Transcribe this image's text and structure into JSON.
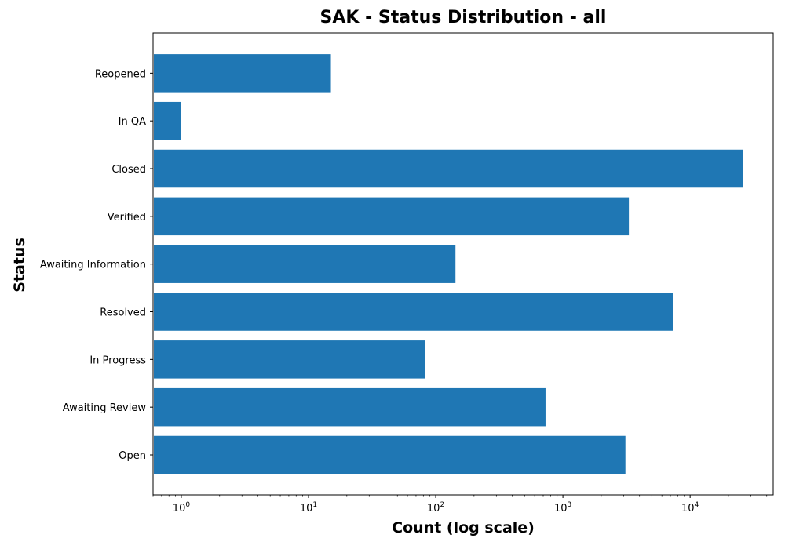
{
  "chart_data": {
    "type": "bar",
    "orientation": "horizontal",
    "title": "SAK - Status Distribution - all",
    "xlabel": "Count (log scale)",
    "ylabel": "Status",
    "xscale": "log",
    "xlim": [
      0.6,
      45000
    ],
    "x_tick_labels": [
      "10^0",
      "10^1",
      "10^2",
      "10^3",
      "10^4"
    ],
    "categories": [
      "Open",
      "Awaiting Review",
      "In Progress",
      "Resolved",
      "Awaiting Information",
      "Verified",
      "Closed",
      "In QA",
      "Reopened"
    ],
    "values": [
      3100,
      730,
      83,
      7300,
      143,
      3300,
      26000,
      1,
      15
    ],
    "bar_color": "#1f77b4",
    "grid": false,
    "legend": "none"
  }
}
